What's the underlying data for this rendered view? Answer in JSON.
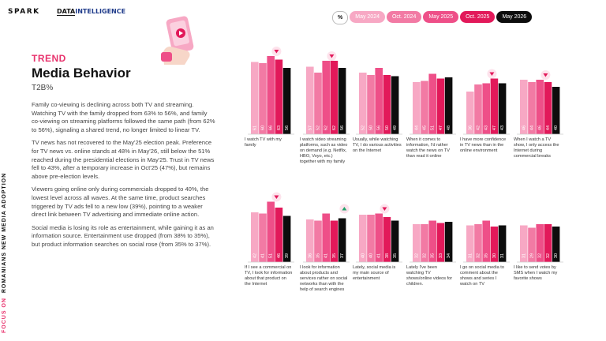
{
  "logos": {
    "spark": "SPARK",
    "di_left": "DATA",
    "di_right": "INTELLIGENCE"
  },
  "legend": {
    "unit": "%",
    "items": [
      {
        "label": "May 2024",
        "color": "#f7a8c4"
      },
      {
        "label": "Oct. 2024",
        "color": "#f27aa4"
      },
      {
        "label": "May 2025",
        "color": "#ee4f88"
      },
      {
        "label": "Oct. 2025",
        "color": "#e2195a"
      },
      {
        "label": "May 2026",
        "color": "#0d0d0d"
      }
    ]
  },
  "vertical_label": {
    "focus": "FOCUS ON",
    "rest": "ROMANIANS NEW MEDIA ADOPTION"
  },
  "section": {
    "tag": "TREND",
    "title": "Media Behavior",
    "subtitle": "T2B%"
  },
  "paragraphs": [
    "Family co-viewing is declining across both TV and streaming. Watching TV with the family dropped from 63% to 56%, and family co-viewing on streaming platforms followed the same path (from 62% to 56%), signaling a shared trend, no longer limited to linear TV.",
    "TV news has not recovered to the May'25 election peak. Preference for TV news vs. online stands at 48% in May'26, still below the 51% reached during the presidential elections in May'25. Trust in TV news fell to 43%, after a temporary increase in Oct'25 (47%), but remains above pre-election levels.",
    "Viewers going online only during commercials dropped to 40%, the lowest level across all waves. At the same time, product searches triggered by TV ads fell to a new low (39%), pointing to a weaker direct link between TV advertising and immediate online action.",
    "Social media is losing its role as entertainment, while gaining it as an information source. Entertainment use dropped (from 38% to 35%), but product information searches on social rose (from 35% to 37%)."
  ],
  "chart_data": [
    {
      "type": "bar",
      "caption": "I watch TV with my family",
      "categories": [
        "May 2024",
        "Oct. 2024",
        "May 2025",
        "Oct. 2025",
        "May 2026"
      ],
      "values": [
        61,
        60,
        66,
        63,
        56
      ],
      "marker": "down"
    },
    {
      "type": "bar",
      "caption": "I watch video streaming platforms, such as video on demand (e.g. Netflix, HBO, Voyo, etc.) together with my family",
      "categories": [
        "May 2024",
        "Oct. 2024",
        "May 2025",
        "Oct. 2025",
        "May 2026"
      ],
      "values": [
        57,
        52,
        62,
        62,
        56
      ],
      "marker": "down"
    },
    {
      "type": "bar",
      "caption": "Usually, while watching TV, I do various activities on the Internet",
      "categories": [
        "May 2024",
        "Oct. 2024",
        "May 2025",
        "Oct. 2025",
        "May 2026"
      ],
      "values": [
        52,
        50,
        56,
        50,
        49
      ],
      "marker": ""
    },
    {
      "type": "bar",
      "caption": "When it comes to information, I'd rather watch the news on TV than read it online",
      "categories": [
        "May 2024",
        "Oct. 2024",
        "May 2025",
        "Oct. 2025",
        "May 2026"
      ],
      "values": [
        44,
        45,
        51,
        47,
        48
      ],
      "marker": ""
    },
    {
      "type": "bar",
      "caption": "I have more confidence in TV news than in the online environment",
      "categories": [
        "May 2024",
        "Oct. 2024",
        "May 2025",
        "Oct. 2025",
        "May 2026"
      ],
      "values": [
        36,
        42,
        43,
        47,
        43
      ],
      "marker": "down"
    },
    {
      "type": "bar",
      "caption": "When I watch a TV show, I only access the Internet during commercial breaks",
      "categories": [
        "May 2024",
        "Oct. 2024",
        "May 2025",
        "Oct. 2025",
        "May 2026"
      ],
      "values": [
        46,
        44,
        46,
        44,
        40
      ],
      "marker": "down"
    },
    {
      "type": "bar",
      "caption": "If I see a commercial on TV, I look for information about that product on the Internet",
      "categories": [
        "May 2024",
        "Oct. 2024",
        "May 2025",
        "Oct. 2025",
        "May 2026"
      ],
      "values": [
        42,
        41,
        51,
        46,
        39
      ],
      "marker": "down"
    },
    {
      "type": "bar",
      "caption": "I look for information about products and services rather on social networks than with the help of search engines",
      "categories": [
        "May 2024",
        "Oct. 2024",
        "May 2025",
        "Oct. 2025",
        "May 2026"
      ],
      "values": [
        36,
        35,
        41,
        35,
        37
      ],
      "marker": "up"
    },
    {
      "type": "bar",
      "caption": "Lately, social media is my main source of entertainment",
      "categories": [
        "May 2024",
        "Oct. 2024",
        "May 2025",
        "Oct. 2025",
        "May 2026"
      ],
      "values": [
        40,
        40,
        41,
        38,
        35
      ],
      "marker": "down"
    },
    {
      "type": "bar",
      "caption": "Lately I've been watching TV shows/online videos for children.",
      "categories": [
        "May 2024",
        "Oct. 2024",
        "May 2025",
        "Oct. 2025",
        "May 2026"
      ],
      "values": [
        32,
        32,
        35,
        33,
        34
      ],
      "marker": ""
    },
    {
      "type": "bar",
      "caption": "I go on social media to comment about the shows and series I watch on TV",
      "categories": [
        "May 2024",
        "Oct. 2024",
        "May 2025",
        "Oct. 2025",
        "May 2026"
      ],
      "values": [
        31,
        32,
        35,
        30,
        31
      ],
      "marker": ""
    },
    {
      "type": "bar",
      "caption": "I like to send votes by SMS when I watch my favorite shows",
      "categories": [
        "May 2024",
        "Oct. 2024",
        "May 2025",
        "Oct. 2025",
        "May 2026"
      ],
      "values": [
        31,
        29,
        32,
        32,
        30
      ],
      "marker": ""
    }
  ]
}
